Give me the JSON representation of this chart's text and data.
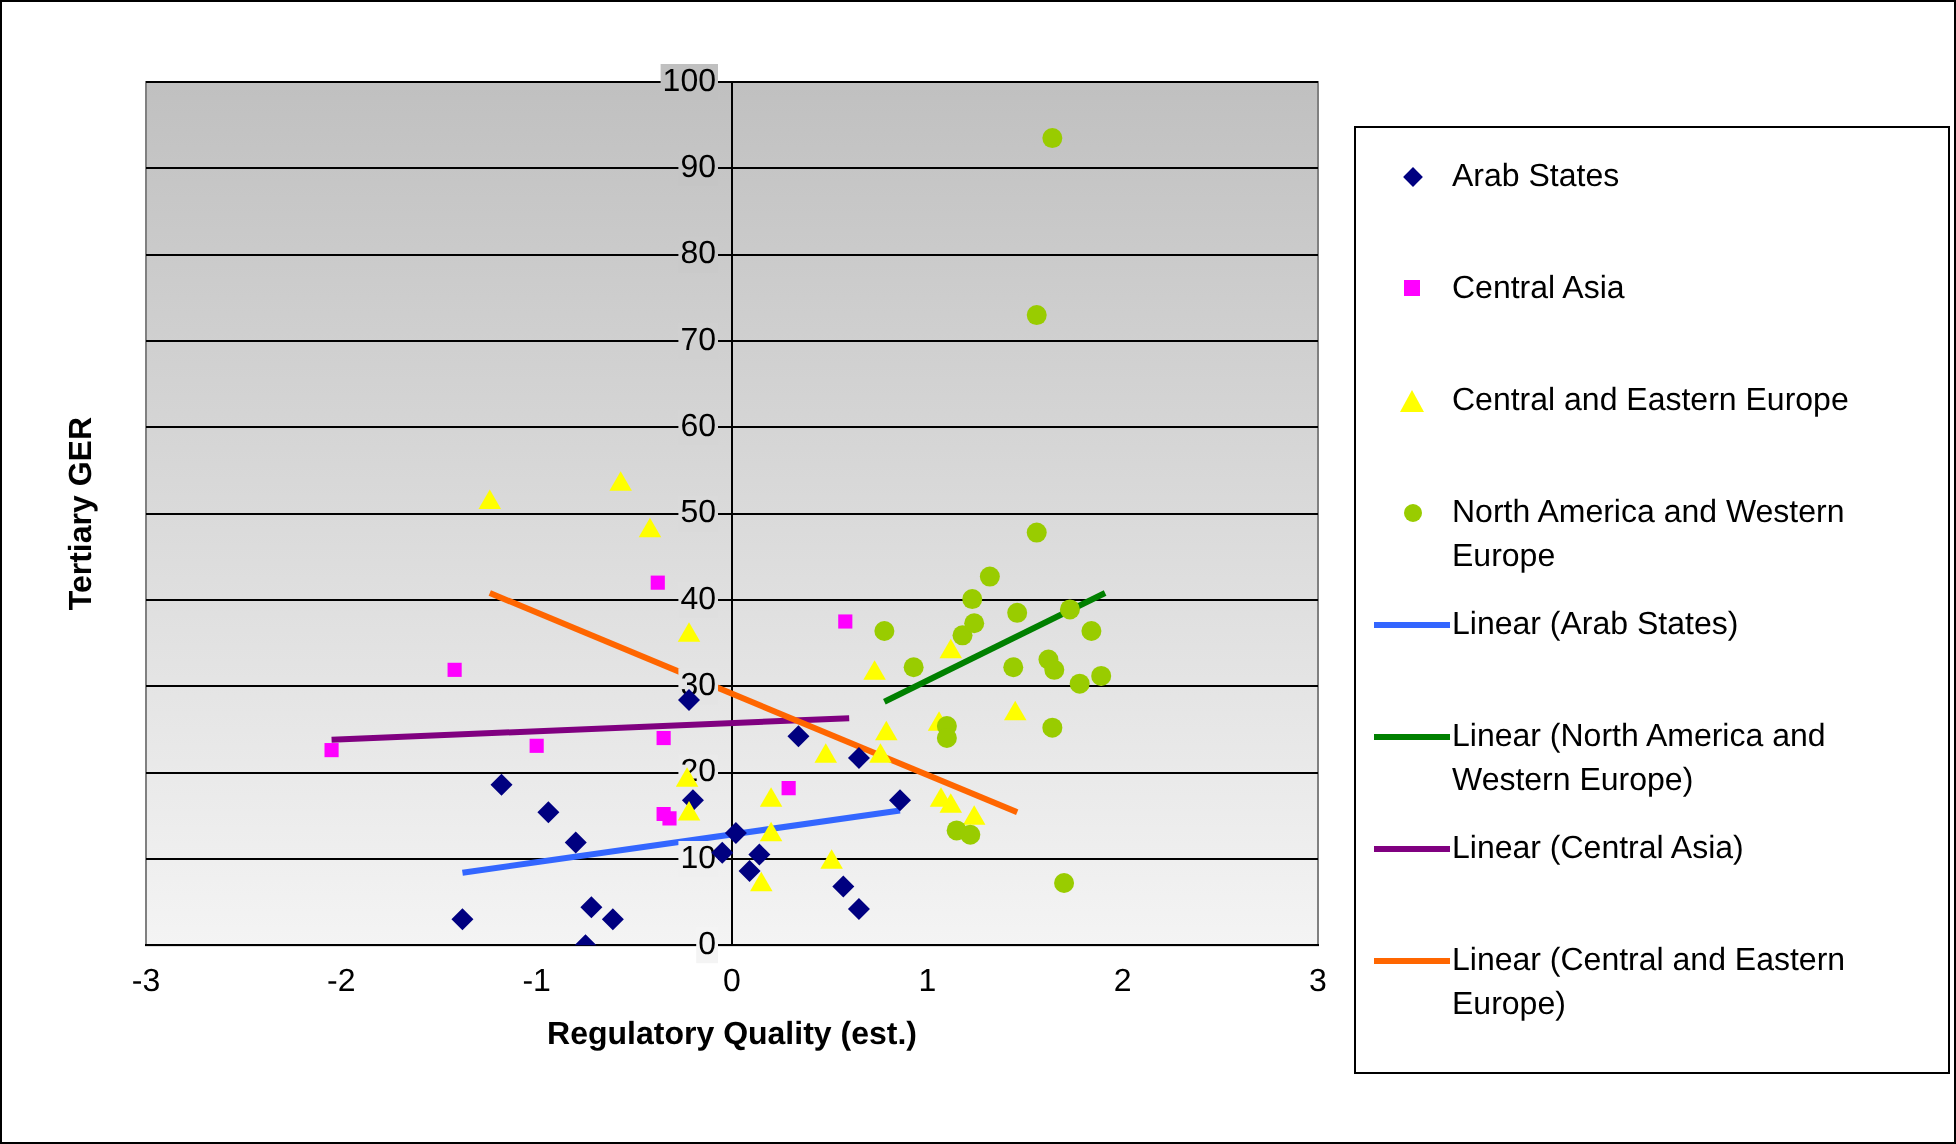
{
  "chart_data": {
    "type": "scatter",
    "xlabel": "Regulatory Quality (est.)",
    "ylabel": "Tertiary GER",
    "xlim": [
      -3,
      3
    ],
    "xticks": [
      -3,
      -2,
      -1,
      0,
      1,
      2,
      3
    ],
    "ylim": [
      0,
      100
    ],
    "yticks": [
      0,
      10,
      20,
      30,
      40,
      50,
      60,
      70,
      80,
      90,
      100
    ],
    "grid": "y",
    "legend": "right",
    "series": [
      {
        "name": "Arab States",
        "color": "#000080",
        "marker": "diamond",
        "x": [
          -1.38,
          -1.18,
          -0.94,
          -0.8,
          -0.72,
          -0.75,
          -0.61,
          -0.22,
          -0.2,
          -0.05,
          0.02,
          0.09,
          0.14,
          0.34,
          0.65,
          0.86,
          0.57,
          0.65
        ],
        "values": [
          3.0,
          18.6,
          15.4,
          11.9,
          4.4,
          0,
          3.0,
          28.4,
          16.8,
          10.7,
          13.0,
          8.6,
          10.5,
          24.2,
          21.7,
          16.8,
          6.8,
          4.2
        ]
      },
      {
        "name": "Central Asia",
        "color": "#ff00ff",
        "marker": "square",
        "x": [
          -2.05,
          -1.42,
          -1.0,
          -0.38,
          -0.35,
          -0.35,
          -0.32,
          0.58,
          0.29
        ],
        "values": [
          22.6,
          31.9,
          23.1,
          42.0,
          24.0,
          15.2,
          14.7,
          37.5,
          18.2
        ]
      },
      {
        "name": "Central and Eastern Europe",
        "color": "#ffff00",
        "marker": "triangle",
        "x": [
          -1.24,
          -0.57,
          -0.42,
          -0.22,
          -0.23,
          -0.22,
          0.2,
          0.2,
          0.15,
          0.51,
          0.48,
          0.73,
          0.79,
          0.76,
          1.12,
          1.06,
          1.07,
          1.12,
          1.24,
          1.45
        ],
        "values": [
          51.3,
          53.4,
          48.0,
          35.9,
          19.1,
          15.2,
          16.8,
          12.8,
          7.0,
          9.6,
          21.9,
          31.5,
          24.5,
          21.9,
          34.0,
          25.6,
          16.8,
          16.1,
          14.7,
          26.8
        ]
      },
      {
        "name": "North America and Western Europe",
        "color": "#99cc00",
        "marker": "circle",
        "x": [
          0.78,
          0.93,
          1.1,
          1.1,
          1.15,
          1.22,
          1.18,
          1.24,
          1.23,
          1.32,
          1.46,
          1.44,
          1.56,
          1.62,
          1.65,
          1.73,
          1.84,
          1.78,
          1.89,
          1.64,
          1.7,
          1.64,
          1.56
        ],
        "values": [
          36.4,
          32.2,
          25.4,
          24.0,
          13.3,
          12.8,
          35.9,
          37.3,
          40.1,
          42.7,
          38.5,
          32.2,
          47.8,
          33.1,
          31.9,
          38.9,
          36.4,
          30.3,
          31.2,
          25.2,
          7.2,
          93.5,
          73.0
        ]
      },
      {
        "name": "Linear (Arab States)",
        "type": "line",
        "color": "#3366ff",
        "marker": "none",
        "x": [
          -1.38,
          0.86
        ],
        "values": [
          8.4,
          15.6
        ]
      },
      {
        "name": "Linear (North America and Western Europe)",
        "type": "line",
        "color": "#008000",
        "marker": "none",
        "x": [
          0.78,
          1.91
        ],
        "values": [
          28.2,
          40.8
        ]
      },
      {
        "name": "Linear (Central Asia)",
        "type": "line",
        "color": "#800080",
        "marker": "none",
        "x": [
          -2.05,
          0.6
        ],
        "values": [
          23.8,
          26.3
        ]
      },
      {
        "name": "Linear (Central and Eastern Europe)",
        "type": "line",
        "color": "#ff6600",
        "marker": "none",
        "x": [
          -1.24,
          1.46
        ],
        "values": [
          40.8,
          15.4
        ]
      }
    ]
  }
}
